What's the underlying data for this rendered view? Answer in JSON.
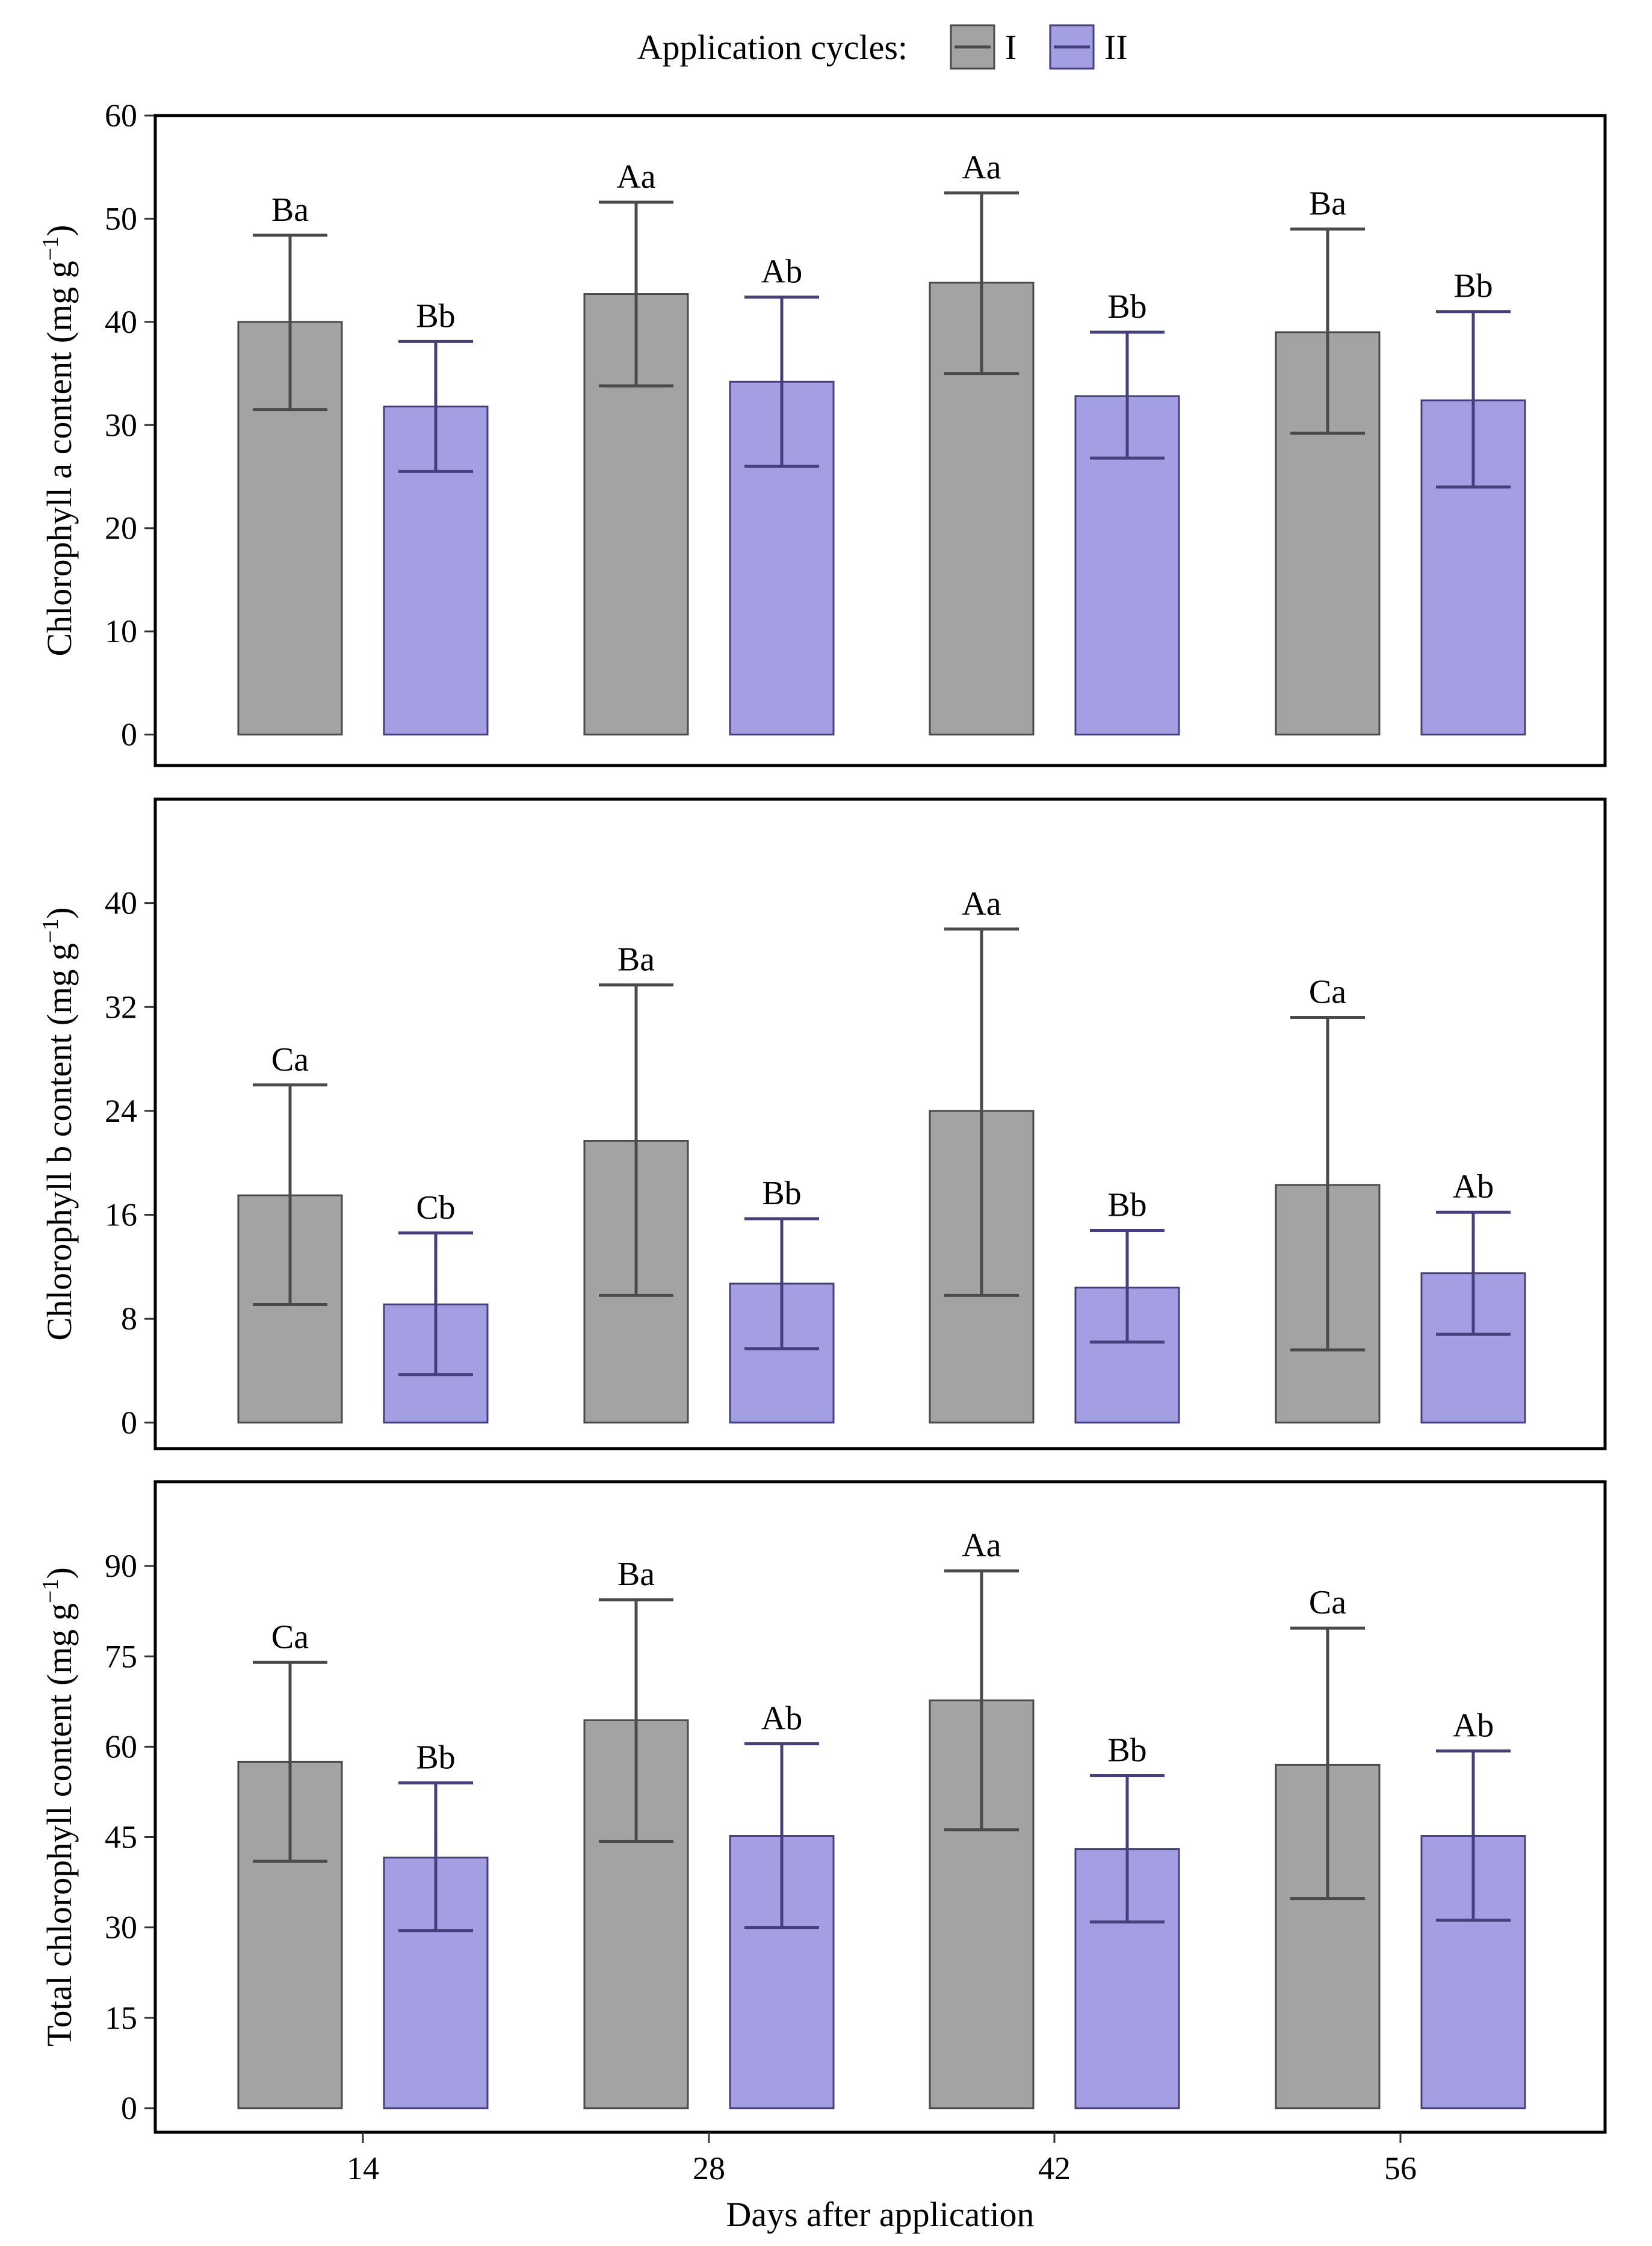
{
  "legend": {
    "title": "Application cycles:",
    "items": [
      {
        "label": "I",
        "fill": "#a3a3a3",
        "stroke": "#4a4a4a"
      },
      {
        "label": "II",
        "fill": "#a39fe2",
        "stroke": "#453f7e"
      }
    ]
  },
  "x_axis": {
    "label": "Days after application",
    "categories": [
      "14",
      "28",
      "42",
      "56"
    ]
  },
  "chart_data": [
    {
      "type": "bar",
      "ylabel": "Chlorophyll a content (mg g",
      "ylabel_sup": "−1",
      "ylabel_tail": ")",
      "categories": [
        "14",
        "28",
        "42",
        "56"
      ],
      "ylim": [
        -3,
        60
      ],
      "yticks": [
        0,
        10,
        20,
        30,
        40,
        50,
        60
      ],
      "series": [
        {
          "name": "I",
          "values": [
            40,
            42.7,
            43.8,
            39
          ],
          "err_low": [
            31.5,
            33.8,
            35,
            29.2
          ],
          "err_high": [
            48.4,
            51.6,
            52.5,
            49
          ],
          "labels": [
            "Ba",
            "Aa",
            "Aa",
            "Ba"
          ]
        },
        {
          "name": "II",
          "values": [
            31.8,
            34.2,
            32.8,
            32.4
          ],
          "err_low": [
            25.5,
            26,
            26.8,
            24
          ],
          "err_high": [
            38.1,
            42.4,
            39,
            41
          ],
          "labels": [
            "Bb",
            "Ab",
            "Bb",
            "Bb"
          ]
        }
      ]
    },
    {
      "type": "bar",
      "ylabel": "Chlorophyll b content (mg g",
      "ylabel_sup": "−1",
      "ylabel_tail": ")",
      "categories": [
        "14",
        "28",
        "42",
        "56"
      ],
      "ylim": [
        -2,
        48
      ],
      "yticks": [
        0,
        8,
        16,
        24,
        32,
        40
      ],
      "series": [
        {
          "name": "I",
          "values": [
            17.5,
            21.7,
            24,
            18.3
          ],
          "err_low": [
            9.1,
            9.8,
            9.8,
            5.6
          ],
          "err_high": [
            26,
            33.7,
            38,
            31.2
          ],
          "labels": [
            "Ca",
            "Ba",
            "Aa",
            "Ca"
          ]
        },
        {
          "name": "II",
          "values": [
            9.1,
            10.7,
            10.4,
            11.5
          ],
          "err_low": [
            3.7,
            5.7,
            6.2,
            6.8
          ],
          "err_high": [
            14.6,
            15.7,
            14.8,
            16.2
          ],
          "labels": [
            "Cb",
            "Bb",
            "Bb",
            "Ab"
          ]
        }
      ]
    },
    {
      "type": "bar",
      "ylabel": "Total chlorophyll content (mg g",
      "ylabel_sup": "−1",
      "ylabel_tail": ")",
      "categories": [
        "14",
        "28",
        "42",
        "56"
      ],
      "ylim": [
        -4,
        104
      ],
      "yticks": [
        0,
        15,
        30,
        45,
        60,
        75,
        90
      ],
      "series": [
        {
          "name": "I",
          "values": [
            57.5,
            64.4,
            67.7,
            57
          ],
          "err_low": [
            41,
            44.3,
            46.2,
            34.8
          ],
          "err_high": [
            74,
            84.4,
            89.2,
            79.7
          ],
          "labels": [
            "Ca",
            "Ba",
            "Aa",
            "Ca"
          ]
        },
        {
          "name": "II",
          "values": [
            41.6,
            45.2,
            43,
            45.2
          ],
          "err_low": [
            29.5,
            30,
            30.9,
            31.2
          ],
          "err_high": [
            54,
            60.5,
            55.2,
            59.3
          ],
          "labels": [
            "Bb",
            "Ab",
            "Bb",
            "Ab"
          ]
        }
      ]
    }
  ]
}
